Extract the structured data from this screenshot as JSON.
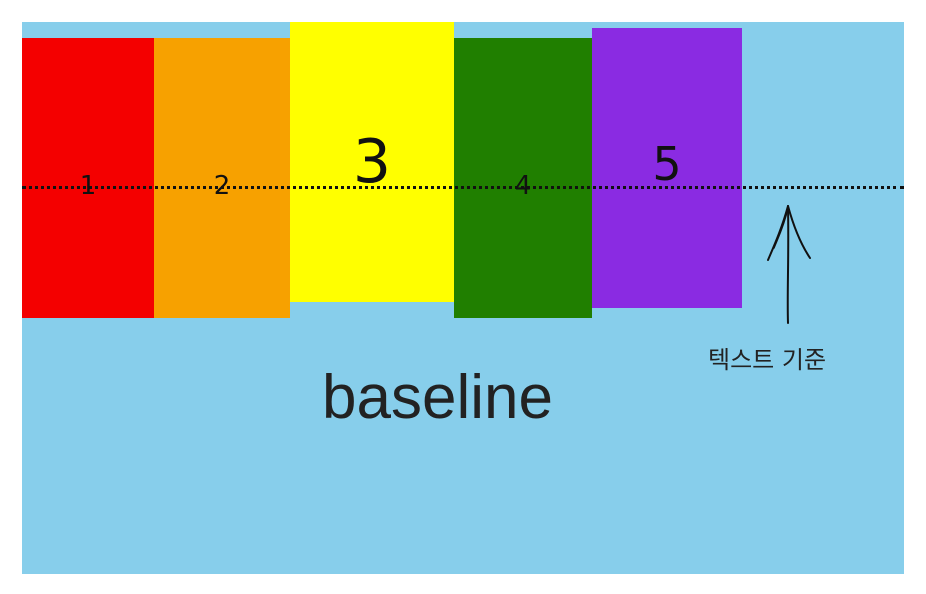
{
  "boxes": [
    {
      "label": "1",
      "color": "#f40000"
    },
    {
      "label": "2",
      "color": "#f7a100"
    },
    {
      "label": "3",
      "color": "#ffff00"
    },
    {
      "label": "4",
      "color": "#207f00"
    },
    {
      "label": "5",
      "color": "#8a2be2"
    }
  ],
  "background_color": "#87ceeb",
  "annotation": {
    "caption": "텍스트 기준",
    "icon": "hand-drawn-up-arrow-icon"
  },
  "title": "baseline"
}
